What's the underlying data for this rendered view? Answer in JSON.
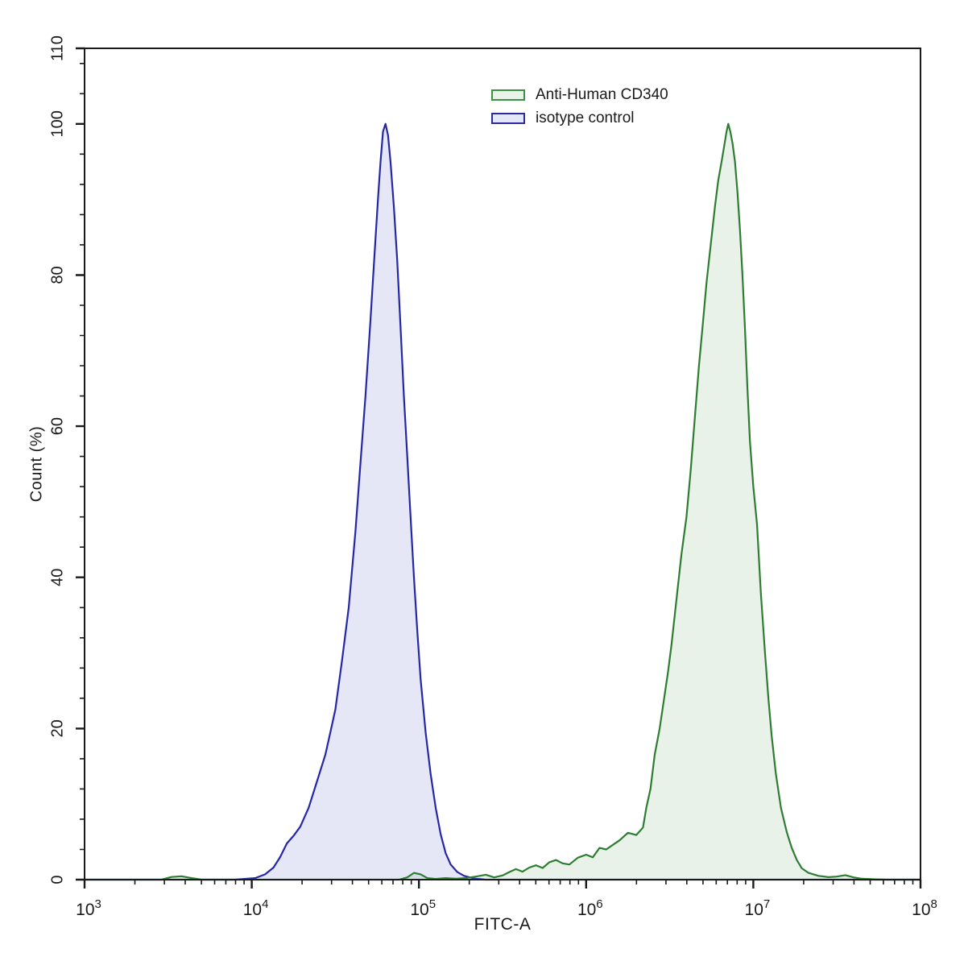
{
  "figure": {
    "background_color": "#ffffff",
    "frame_color": "#1a1a1a",
    "text_color": "#1a1a1a"
  },
  "axes": {
    "x_title": "FITC-A",
    "y_title": "Count  (%)"
  },
  "legend": {
    "items": [
      {
        "label": "Anti-Human CD340",
        "border_color": "#3c9144",
        "fill_color": "#e9f4e9"
      },
      {
        "label": "isotype control",
        "border_color": "#2a2ba3",
        "fill_color": "#e4e7f7"
      }
    ]
  },
  "chart_data": {
    "type": "area",
    "subtype": "flow-cytometry-overlay-histogram",
    "title": "",
    "xlabel": "FITC-A",
    "ylabel": "Count  (%)",
    "x_scale": "log10",
    "x_log_range": [
      3,
      8
    ],
    "x_major_ticks_log": [
      3,
      4,
      5,
      6,
      7,
      8
    ],
    "x_tick_label_base": "10",
    "x_tick_label_exponents": [
      "3",
      "4",
      "5",
      "6",
      "7",
      "8"
    ],
    "x_minor_tick_mantissas": [
      2,
      3,
      4,
      5,
      6,
      7,
      8,
      9
    ],
    "ylim": [
      0,
      110
    ],
    "y_major_ticks": [
      0,
      20,
      40,
      60,
      80,
      100,
      110
    ],
    "y_minor_step": 4,
    "grid": false,
    "legend_position": "upper-center",
    "series": [
      {
        "name": "isotype control",
        "line_color": "#2527a6",
        "fill_color": "rgba(125, 135, 216, 0.20)",
        "peak_x": 61000,
        "peak_y_pct": 100,
        "points_logx_pct": [
          [
            3.0,
            0
          ],
          [
            3.9,
            0
          ],
          [
            4.02,
            0.2
          ],
          [
            4.08,
            0.7
          ],
          [
            4.13,
            1.6
          ],
          [
            4.17,
            3.0
          ],
          [
            4.21,
            4.8
          ],
          [
            4.25,
            5.8
          ],
          [
            4.29,
            7.0
          ],
          [
            4.34,
            9.5
          ],
          [
            4.39,
            13
          ],
          [
            4.44,
            16.5
          ],
          [
            4.47,
            19.5
          ],
          [
            4.5,
            22.5
          ],
          [
            4.54,
            29
          ],
          [
            4.58,
            36
          ],
          [
            4.62,
            46
          ],
          [
            4.65,
            55
          ],
          [
            4.68,
            64
          ],
          [
            4.71,
            74
          ],
          [
            4.735,
            83
          ],
          [
            4.755,
            90
          ],
          [
            4.77,
            95
          ],
          [
            4.785,
            99
          ],
          [
            4.8,
            100
          ],
          [
            4.815,
            98.5
          ],
          [
            4.83,
            95
          ],
          [
            4.85,
            89
          ],
          [
            4.87,
            82
          ],
          [
            4.89,
            73
          ],
          [
            4.91,
            64
          ],
          [
            4.93,
            56
          ],
          [
            4.95,
            48
          ],
          [
            4.97,
            40
          ],
          [
            4.99,
            33
          ],
          [
            5.01,
            26.5
          ],
          [
            5.04,
            19.5
          ],
          [
            5.07,
            14
          ],
          [
            5.1,
            9.5
          ],
          [
            5.13,
            6
          ],
          [
            5.16,
            3.5
          ],
          [
            5.19,
            2
          ],
          [
            5.23,
            1
          ],
          [
            5.27,
            0.5
          ],
          [
            5.33,
            0.15
          ],
          [
            5.4,
            0
          ],
          [
            8.0,
            0
          ]
        ]
      },
      {
        "name": "Anti-Human CD340",
        "line_color": "#2e7d32",
        "fill_color": "rgba(125, 185, 125, 0.18)",
        "peak_x": 7000000,
        "peak_y_pct": 100,
        "points_logx_pct": [
          [
            3.0,
            0
          ],
          [
            3.46,
            0
          ],
          [
            3.52,
            0.35
          ],
          [
            3.58,
            0.45
          ],
          [
            3.64,
            0.2
          ],
          [
            3.7,
            0
          ],
          [
            4.88,
            0
          ],
          [
            4.93,
            0.3
          ],
          [
            4.97,
            0.9
          ],
          [
            5.01,
            0.7
          ],
          [
            5.05,
            0.2
          ],
          [
            5.1,
            0.1
          ],
          [
            5.16,
            0.2
          ],
          [
            5.22,
            0.12
          ],
          [
            5.28,
            0.2
          ],
          [
            5.35,
            0.45
          ],
          [
            5.4,
            0.65
          ],
          [
            5.45,
            0.3
          ],
          [
            5.5,
            0.55
          ],
          [
            5.54,
            1.0
          ],
          [
            5.58,
            1.4
          ],
          [
            5.62,
            1.05
          ],
          [
            5.66,
            1.6
          ],
          [
            5.7,
            1.9
          ],
          [
            5.74,
            1.55
          ],
          [
            5.78,
            2.3
          ],
          [
            5.82,
            2.6
          ],
          [
            5.86,
            2.15
          ],
          [
            5.9,
            2.0
          ],
          [
            5.95,
            2.9
          ],
          [
            6.0,
            3.3
          ],
          [
            6.04,
            2.95
          ],
          [
            6.08,
            4.2
          ],
          [
            6.12,
            4.0
          ],
          [
            6.16,
            4.6
          ],
          [
            6.2,
            5.2
          ],
          [
            6.25,
            6.2
          ],
          [
            6.3,
            5.9
          ],
          [
            6.34,
            6.9
          ],
          [
            6.36,
            9.5
          ],
          [
            6.385,
            12
          ],
          [
            6.41,
            16.5
          ],
          [
            6.44,
            20
          ],
          [
            6.46,
            23
          ],
          [
            6.49,
            27.5
          ],
          [
            6.51,
            31
          ],
          [
            6.54,
            37
          ],
          [
            6.57,
            43
          ],
          [
            6.6,
            48
          ],
          [
            6.625,
            54
          ],
          [
            6.65,
            61
          ],
          [
            6.675,
            68
          ],
          [
            6.7,
            74
          ],
          [
            6.72,
            79
          ],
          [
            6.745,
            84
          ],
          [
            6.77,
            89
          ],
          [
            6.79,
            92.5
          ],
          [
            6.81,
            95
          ],
          [
            6.825,
            97
          ],
          [
            6.84,
            99
          ],
          [
            6.85,
            100
          ],
          [
            6.862,
            99
          ],
          [
            6.875,
            97.5
          ],
          [
            6.89,
            95
          ],
          [
            6.905,
            91
          ],
          [
            6.92,
            86
          ],
          [
            6.935,
            80
          ],
          [
            6.95,
            73
          ],
          [
            6.965,
            65
          ],
          [
            6.98,
            58
          ],
          [
            7.0,
            52
          ],
          [
            7.022,
            47
          ],
          [
            7.045,
            38
          ],
          [
            7.07,
            30
          ],
          [
            7.09,
            24
          ],
          [
            7.11,
            19
          ],
          [
            7.135,
            14
          ],
          [
            7.165,
            9.5
          ],
          [
            7.2,
            6.3
          ],
          [
            7.23,
            4.2
          ],
          [
            7.26,
            2.6
          ],
          [
            7.29,
            1.5
          ],
          [
            7.33,
            0.9
          ],
          [
            7.39,
            0.5
          ],
          [
            7.45,
            0.33
          ],
          [
            7.5,
            0.4
          ],
          [
            7.55,
            0.6
          ],
          [
            7.6,
            0.3
          ],
          [
            7.65,
            0.12
          ],
          [
            7.73,
            0.04
          ],
          [
            7.8,
            0
          ],
          [
            8.0,
            0
          ]
        ]
      }
    ]
  }
}
